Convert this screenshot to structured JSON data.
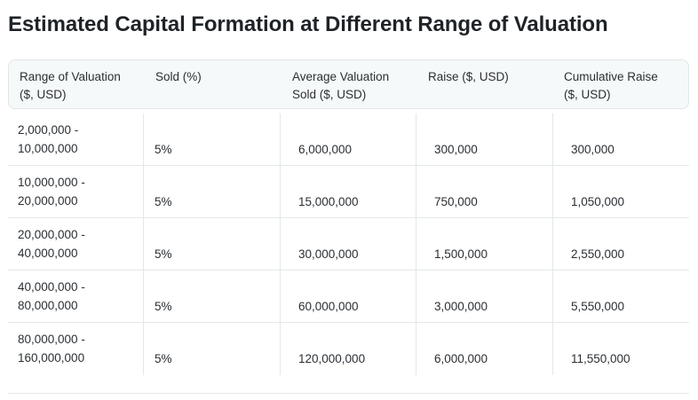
{
  "title": "Estimated Capital Formation at Different Range of Valuation",
  "table": {
    "headers": [
      [
        "Range of Valuation",
        "($, USD)"
      ],
      [
        "Sold (%)"
      ],
      [
        "Average Valuation",
        "Sold ($, USD)"
      ],
      [
        "Raise ($, USD)"
      ],
      [
        "Cumulative Raise",
        "($, USD)"
      ]
    ],
    "rows": [
      {
        "range": [
          "2,000,000 -",
          "10,000,000"
        ],
        "sold": "5%",
        "avg": "6,000,000",
        "raise": "300,000",
        "cumulative": "300,000"
      },
      {
        "range": [
          "10,000,000 -",
          "20,000,000"
        ],
        "sold": "5%",
        "avg": "15,000,000",
        "raise": "750,000",
        "cumulative": "1,050,000"
      },
      {
        "range": [
          "20,000,000 -",
          "40,000,000"
        ],
        "sold": "5%",
        "avg": "30,000,000",
        "raise": "1,500,000",
        "cumulative": "2,550,000"
      },
      {
        "range": [
          "40,000,000 -",
          "80,000,000"
        ],
        "sold": "5%",
        "avg": "60,000,000",
        "raise": "3,000,000",
        "cumulative": "5,550,000"
      },
      {
        "range": [
          "80,000,000 -",
          "160,000,000"
        ],
        "sold": "5%",
        "avg": "120,000,000",
        "raise": "6,000,000",
        "cumulative": "11,550,000"
      }
    ]
  }
}
